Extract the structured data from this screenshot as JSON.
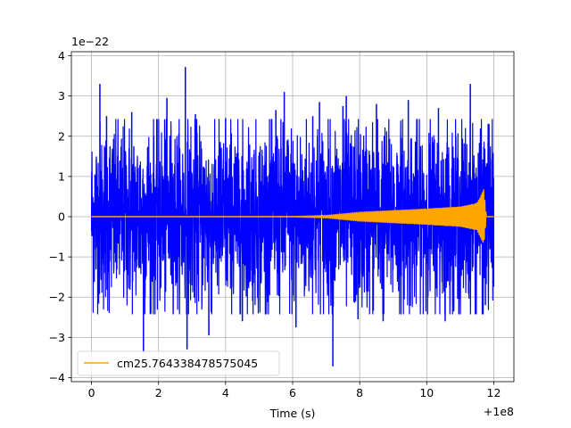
{
  "chart_data": {
    "type": "line",
    "title": "",
    "xlabel": "Time (s)",
    "ylabel": "",
    "x_offset_label": "+1e8",
    "y_scale_label": "1e−22",
    "xlim": [
      -0.6,
      12.6
    ],
    "ylim": [
      -4.1,
      4.1
    ],
    "xticks": [
      0,
      2,
      4,
      6,
      8,
      10,
      12
    ],
    "xtick_labels": [
      "0",
      "2",
      "4",
      "6",
      "8",
      "10",
      "12"
    ],
    "yticks": [
      -4,
      -3,
      -2,
      -1,
      0,
      1,
      2,
      3,
      4
    ],
    "ytick_labels": [
      "−4",
      "−3",
      "−2",
      "−1",
      "0",
      "1",
      "2",
      "3",
      "4"
    ],
    "grid": true,
    "legend": {
      "placement": "lower-left"
    },
    "series": [
      {
        "color": "#0000ff",
        "style": "noise",
        "x_range": [
          0,
          12
        ],
        "typical_envelope": [
          -2.1,
          2.1
        ],
        "peak_max": 3.72,
        "peak_min": -3.72,
        "spikes": [
          {
            "x": 0.25,
            "y": 3.3
          },
          {
            "x": 0.45,
            "y": 2.5
          },
          {
            "x": 1.2,
            "y": 2.6
          },
          {
            "x": 1.55,
            "y": -3.38
          },
          {
            "x": 2.25,
            "y": 2.95
          },
          {
            "x": 2.8,
            "y": 3.72
          },
          {
            "x": 2.85,
            "y": -3.3
          },
          {
            "x": 3.1,
            "y": 2.55
          },
          {
            "x": 3.5,
            "y": -2.95
          },
          {
            "x": 4.0,
            "y": 2.45
          },
          {
            "x": 4.5,
            "y": -2.6
          },
          {
            "x": 5.5,
            "y": 2.65
          },
          {
            "x": 5.75,
            "y": 3.1
          },
          {
            "x": 6.1,
            "y": -2.75
          },
          {
            "x": 6.6,
            "y": 2.5
          },
          {
            "x": 6.8,
            "y": 2.85
          },
          {
            "x": 7.2,
            "y": -3.72
          },
          {
            "x": 7.5,
            "y": 2.75
          },
          {
            "x": 7.6,
            "y": 3.0
          },
          {
            "x": 7.95,
            "y": -2.55
          },
          {
            "x": 8.5,
            "y": 2.8
          },
          {
            "x": 8.7,
            "y": -2.6
          },
          {
            "x": 9.45,
            "y": 2.9
          },
          {
            "x": 10.35,
            "y": 2.7
          },
          {
            "x": 10.55,
            "y": -2.6
          },
          {
            "x": 11.3,
            "y": 3.3
          },
          {
            "x": 11.75,
            "y": -2.2
          }
        ]
      },
      {
        "name": "cm25.764338478575045",
        "color": "#ffa500",
        "style": "chirp",
        "x_range": [
          0,
          12
        ],
        "envelope": [
          {
            "x": 0,
            "a": 0.0
          },
          {
            "x": 6.0,
            "a": 0.005
          },
          {
            "x": 7.0,
            "a": 0.03
          },
          {
            "x": 8.0,
            "a": 0.11
          },
          {
            "x": 9.0,
            "a": 0.15
          },
          {
            "x": 10.0,
            "a": 0.19
          },
          {
            "x": 11.0,
            "a": 0.24
          },
          {
            "x": 11.5,
            "a": 0.33
          },
          {
            "x": 11.7,
            "a": 0.68
          },
          {
            "x": 11.78,
            "a": 0.0
          },
          {
            "x": 12.0,
            "a": 0.0
          }
        ]
      }
    ]
  }
}
